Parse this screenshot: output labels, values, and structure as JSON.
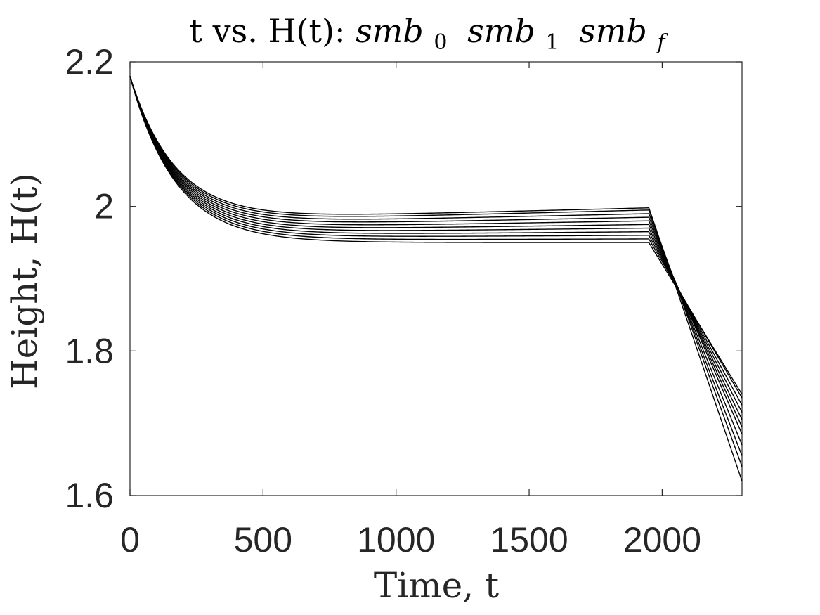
{
  "chart_data": {
    "type": "line",
    "title": {
      "prefix": "t vs. H(t): ",
      "terms": [
        {
          "base": "smb",
          "sub": "0"
        },
        {
          "base": "smb",
          "sub": "1"
        },
        {
          "base": "smb",
          "sub": "f"
        }
      ]
    },
    "xlabel": "Time, t",
    "ylabel": "Height, H(t)",
    "xlim": [
      0,
      2300
    ],
    "ylim": [
      1.6,
      2.2
    ],
    "xticks": [
      0,
      500,
      1000,
      1500,
      2000
    ],
    "xtick_labels": [
      "0",
      "500",
      "1000",
      "1500",
      "2000"
    ],
    "yticks": [
      1.6,
      1.8,
      2.0,
      2.2
    ],
    "ytick_labels": [
      "1.6",
      "1.8",
      "2",
      "2.2"
    ],
    "grid": false,
    "legend": "none",
    "line_color": "#000000",
    "series_shape": {
      "start_x": 0,
      "start_y": 2.18,
      "decay_time_constant": 170,
      "plateau_end_x": 1950,
      "end_x": 2300
    },
    "series": [
      {
        "plateau_start": 1.95,
        "plateau_end": 1.95,
        "final": 1.74
      },
      {
        "plateau_start": 1.953,
        "plateau_end": 1.955,
        "final": 1.735
      },
      {
        "plateau_start": 1.956,
        "plateau_end": 1.96,
        "final": 1.725
      },
      {
        "plateau_start": 1.959,
        "plateau_end": 1.965,
        "final": 1.715
      },
      {
        "plateau_start": 1.962,
        "plateau_end": 1.97,
        "final": 1.705
      },
      {
        "plateau_start": 1.965,
        "plateau_end": 1.975,
        "final": 1.695
      },
      {
        "plateau_start": 1.968,
        "plateau_end": 1.98,
        "final": 1.685
      },
      {
        "plateau_start": 1.971,
        "plateau_end": 1.985,
        "final": 1.67
      },
      {
        "plateau_start": 1.974,
        "plateau_end": 1.99,
        "final": 1.655
      },
      {
        "plateau_start": 1.977,
        "plateau_end": 1.995,
        "final": 1.64
      },
      {
        "plateau_start": 1.98,
        "plateau_end": 1.998,
        "final": 1.62
      }
    ]
  }
}
